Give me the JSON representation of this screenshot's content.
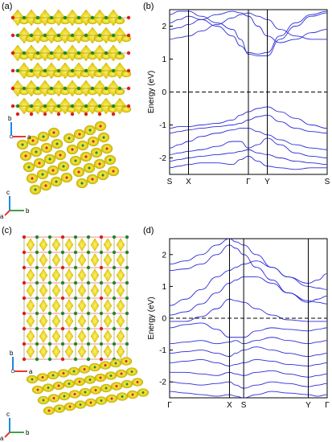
{
  "figure": {
    "panels": [
      {
        "label": "(a)"
      },
      {
        "label": "(b)"
      },
      {
        "label": "(c)"
      },
      {
        "label": "(d)"
      }
    ],
    "axes_triad_top": {
      "b": "b",
      "a": "a",
      "c": "c"
    },
    "axes_triad_top2": {
      "c": "c",
      "b": "b",
      "a": "a"
    },
    "axes_triad_bottom": {
      "b": "b",
      "a": "a"
    },
    "axes_triad_bottom2": {
      "c": "c",
      "b": "b",
      "a": "a"
    },
    "colors": {
      "band": "#2b2bd9",
      "charge": "#e6d21a",
      "charge_dark": "#b8a600",
      "o_atom": "#d9201a",
      "metal_atom": "#1e8a2a"
    }
  },
  "chart_data": [
    {
      "type": "line",
      "panel": "(b)",
      "ylabel": "Energy (eV)",
      "ylim": [
        -2.5,
        2.5
      ],
      "yticks": [
        -2,
        -1,
        0,
        1,
        2
      ],
      "kpath_labels": [
        "S",
        "X",
        "Γ",
        "Y",
        "S"
      ],
      "kpath_x": [
        0,
        0.12,
        0.5,
        0.62,
        1.0
      ],
      "fermi_level": 0,
      "series": [
        {
          "x": [
            0,
            0.06,
            0.12,
            0.2,
            0.3,
            0.4,
            0.45,
            0.5,
            0.56,
            0.62,
            0.7,
            0.8,
            0.9,
            1.0
          ],
          "values": [
            2.35,
            2.45,
            2.45,
            2.3,
            2.1,
            1.9,
            1.6,
            1.15,
            1.1,
            1.1,
            1.6,
            2.0,
            2.3,
            2.4
          ]
        },
        {
          "x": [
            0,
            0.06,
            0.12,
            0.2,
            0.3,
            0.4,
            0.45,
            0.5,
            0.56,
            0.62,
            0.7,
            0.8,
            0.9,
            1.0
          ],
          "values": [
            2.1,
            2.2,
            2.3,
            2.2,
            2.0,
            1.7,
            1.4,
            1.2,
            1.15,
            1.2,
            1.7,
            2.1,
            2.35,
            2.45
          ]
        },
        {
          "x": [
            0,
            0.06,
            0.12,
            0.2,
            0.3,
            0.4,
            0.45,
            0.5,
            0.56,
            0.62,
            0.7,
            0.8,
            0.9,
            1.0
          ],
          "values": [
            1.9,
            1.95,
            2.05,
            2.2,
            2.35,
            2.45,
            2.4,
            2.3,
            2.0,
            1.7,
            1.5,
            1.6,
            1.8,
            1.9
          ]
        },
        {
          "x": [
            0,
            0.06,
            0.12,
            0.2,
            0.3,
            0.4,
            0.45,
            0.5,
            0.56,
            0.62,
            0.7,
            0.8,
            0.9,
            1.0
          ],
          "values": [
            1.6,
            1.65,
            1.7,
            1.85,
            2.05,
            2.25,
            2.35,
            2.4,
            2.3,
            2.2,
            1.9,
            1.7,
            1.6,
            1.6
          ]
        },
        {
          "x": [
            0,
            0.06,
            0.12,
            0.2,
            0.3,
            0.4,
            0.45,
            0.5,
            0.56,
            0.62,
            0.7,
            0.8,
            0.9,
            1.0
          ],
          "values": [
            -1.1,
            -1.05,
            -1.05,
            -1.0,
            -0.95,
            -0.85,
            -0.7,
            -0.6,
            -0.5,
            -0.45,
            -0.6,
            -0.8,
            -1.0,
            -1.1
          ]
        },
        {
          "x": [
            0,
            0.06,
            0.12,
            0.2,
            0.3,
            0.4,
            0.45,
            0.5,
            0.56,
            0.62,
            0.7,
            0.8,
            0.9,
            1.0
          ],
          "values": [
            -1.25,
            -1.2,
            -1.15,
            -1.1,
            -1.05,
            -1.0,
            -0.95,
            -0.85,
            -0.75,
            -0.7,
            -0.9,
            -1.1,
            -1.2,
            -1.25
          ]
        },
        {
          "x": [
            0,
            0.06,
            0.12,
            0.2,
            0.3,
            0.4,
            0.45,
            0.5,
            0.56,
            0.62,
            0.7,
            0.8,
            0.9,
            1.0
          ],
          "values": [
            -1.7,
            -1.6,
            -1.5,
            -1.35,
            -1.25,
            -1.15,
            -1.1,
            -1.1,
            -1.2,
            -1.3,
            -1.45,
            -1.6,
            -1.7,
            -1.75
          ]
        },
        {
          "x": [
            0,
            0.06,
            0.12,
            0.2,
            0.3,
            0.4,
            0.45,
            0.5,
            0.56,
            0.62,
            0.7,
            0.8,
            0.9,
            1.0
          ],
          "values": [
            -1.9,
            -1.85,
            -1.8,
            -1.75,
            -1.65,
            -1.5,
            -1.5,
            -1.7,
            -1.6,
            -1.4,
            -1.6,
            -1.85,
            -1.95,
            -2.0
          ]
        },
        {
          "x": [
            0,
            0.06,
            0.12,
            0.2,
            0.3,
            0.4,
            0.45,
            0.5,
            0.56,
            0.62,
            0.7,
            0.8,
            0.9,
            1.0
          ],
          "values": [
            -2.1,
            -2.05,
            -2.0,
            -1.95,
            -1.9,
            -1.85,
            -1.8,
            -1.75,
            -1.85,
            -1.9,
            -2.0,
            -2.1,
            -2.15,
            -2.2
          ]
        },
        {
          "x": [
            0,
            0.06,
            0.12,
            0.2,
            0.3,
            0.4,
            0.45,
            0.5,
            0.56,
            0.62,
            0.7,
            0.8,
            0.9,
            1.0
          ],
          "values": [
            -2.3,
            -2.25,
            -2.2,
            -2.15,
            -2.15,
            -2.2,
            -2.05,
            -1.95,
            -2.1,
            -2.25,
            -2.3,
            -2.35,
            -2.3,
            -2.3
          ]
        }
      ]
    },
    {
      "type": "line",
      "panel": "(d)",
      "ylabel": "Energy (eV)",
      "ylim": [
        -2.5,
        2.5
      ],
      "yticks": [
        -2,
        -1,
        0,
        1,
        2
      ],
      "kpath_labels": [
        "Γ",
        "X",
        "S",
        "Y",
        "Γ"
      ],
      "kpath_x": [
        0,
        0.38,
        0.47,
        0.88,
        1.0
      ],
      "fermi_level": 0,
      "series": [
        {
          "x": [
            0,
            0.1,
            0.2,
            0.3,
            0.38,
            0.42,
            0.47,
            0.55,
            0.65,
            0.75,
            0.88,
            0.94,
            1.0
          ],
          "values": [
            1.7,
            1.8,
            2.0,
            2.3,
            2.5,
            2.4,
            2.3,
            2.0,
            1.6,
            1.3,
            1.1,
            1.2,
            1.4
          ]
        },
        {
          "x": [
            0,
            0.1,
            0.2,
            0.3,
            0.38,
            0.42,
            0.47,
            0.55,
            0.65,
            0.75,
            0.88,
            0.94,
            1.0
          ],
          "values": [
            1.5,
            1.55,
            1.7,
            2.0,
            2.3,
            2.2,
            2.0,
            1.6,
            1.2,
            0.8,
            0.5,
            0.6,
            0.7
          ]
        },
        {
          "x": [
            0,
            0.1,
            0.2,
            0.3,
            0.38,
            0.42,
            0.47,
            0.55,
            0.65,
            0.75,
            0.88,
            0.94,
            1.0
          ],
          "values": [
            0.4,
            0.6,
            0.9,
            1.3,
            1.5,
            1.6,
            1.7,
            1.8,
            1.6,
            1.3,
            1.0,
            0.95,
            0.9
          ]
        },
        {
          "x": [
            0,
            0.1,
            0.2,
            0.3,
            0.38,
            0.42,
            0.47,
            0.55,
            0.65,
            0.75,
            0.88,
            0.94,
            1.0
          ],
          "values": [
            0.1,
            0.2,
            0.45,
            0.8,
            1.1,
            1.2,
            1.3,
            1.3,
            1.1,
            0.8,
            0.55,
            0.5,
            0.45
          ]
        },
        {
          "x": [
            0,
            0.1,
            0.2,
            0.3,
            0.38,
            0.42,
            0.47,
            0.55,
            0.65,
            0.75,
            0.88,
            0.94,
            1.0
          ],
          "values": [
            -0.1,
            -0.1,
            0.05,
            0.3,
            0.6,
            0.55,
            0.5,
            0.3,
            0.1,
            -0.05,
            -0.1,
            -0.1,
            -0.1
          ]
        },
        {
          "x": [
            0,
            0.1,
            0.2,
            0.3,
            0.38,
            0.42,
            0.47,
            0.55,
            0.65,
            0.75,
            0.88,
            0.94,
            1.0
          ],
          "values": [
            -0.3,
            -0.2,
            -0.15,
            -0.35,
            -0.6,
            -0.6,
            -0.6,
            -0.4,
            -0.3,
            -0.35,
            -0.4,
            -0.35,
            -0.3
          ]
        },
        {
          "x": [
            0,
            0.1,
            0.2,
            0.3,
            0.38,
            0.42,
            0.47,
            0.55,
            0.65,
            0.75,
            0.88,
            0.94,
            1.0
          ],
          "values": [
            -0.8,
            -0.75,
            -0.7,
            -0.8,
            -0.75,
            -0.7,
            -0.8,
            -0.7,
            -0.6,
            -0.7,
            -0.8,
            -0.75,
            -0.7
          ]
        },
        {
          "x": [
            0,
            0.1,
            0.2,
            0.3,
            0.38,
            0.42,
            0.47,
            0.55,
            0.65,
            0.75,
            0.88,
            0.94,
            1.0
          ],
          "values": [
            -1.1,
            -1.05,
            -1.0,
            -1.1,
            -1.2,
            -1.1,
            -1.0,
            -0.9,
            -1.0,
            -1.1,
            -1.2,
            -1.15,
            -1.1
          ]
        },
        {
          "x": [
            0,
            0.1,
            0.2,
            0.3,
            0.38,
            0.42,
            0.47,
            0.55,
            0.65,
            0.75,
            0.88,
            0.94,
            1.0
          ],
          "values": [
            -1.4,
            -1.35,
            -1.3,
            -1.4,
            -1.5,
            -1.45,
            -1.4,
            -1.3,
            -1.35,
            -1.45,
            -1.5,
            -1.45,
            -1.4
          ]
        },
        {
          "x": [
            0,
            0.1,
            0.2,
            0.3,
            0.38,
            0.42,
            0.47,
            0.55,
            0.65,
            0.75,
            0.88,
            0.94,
            1.0
          ],
          "values": [
            -1.7,
            -1.7,
            -1.75,
            -1.8,
            -1.7,
            -1.75,
            -1.8,
            -1.7,
            -1.65,
            -1.75,
            -1.85,
            -1.8,
            -1.75
          ]
        },
        {
          "x": [
            0,
            0.1,
            0.2,
            0.3,
            0.38,
            0.42,
            0.47,
            0.55,
            0.65,
            0.75,
            0.88,
            0.94,
            1.0
          ],
          "values": [
            -2.0,
            -2.05,
            -2.1,
            -2.05,
            -2.0,
            -2.1,
            -2.2,
            -2.1,
            -2.0,
            -2.05,
            -2.15,
            -2.1,
            -2.05
          ]
        },
        {
          "x": [
            0,
            0.1,
            0.2,
            0.3,
            0.38,
            0.42,
            0.47,
            0.55,
            0.65,
            0.75,
            0.88,
            0.94,
            1.0
          ],
          "values": [
            -2.3,
            -2.35,
            -2.4,
            -2.45,
            -2.4,
            -2.45,
            -2.5,
            -2.4,
            -2.3,
            -2.35,
            -2.4,
            -2.45,
            -2.4
          ]
        }
      ]
    }
  ]
}
